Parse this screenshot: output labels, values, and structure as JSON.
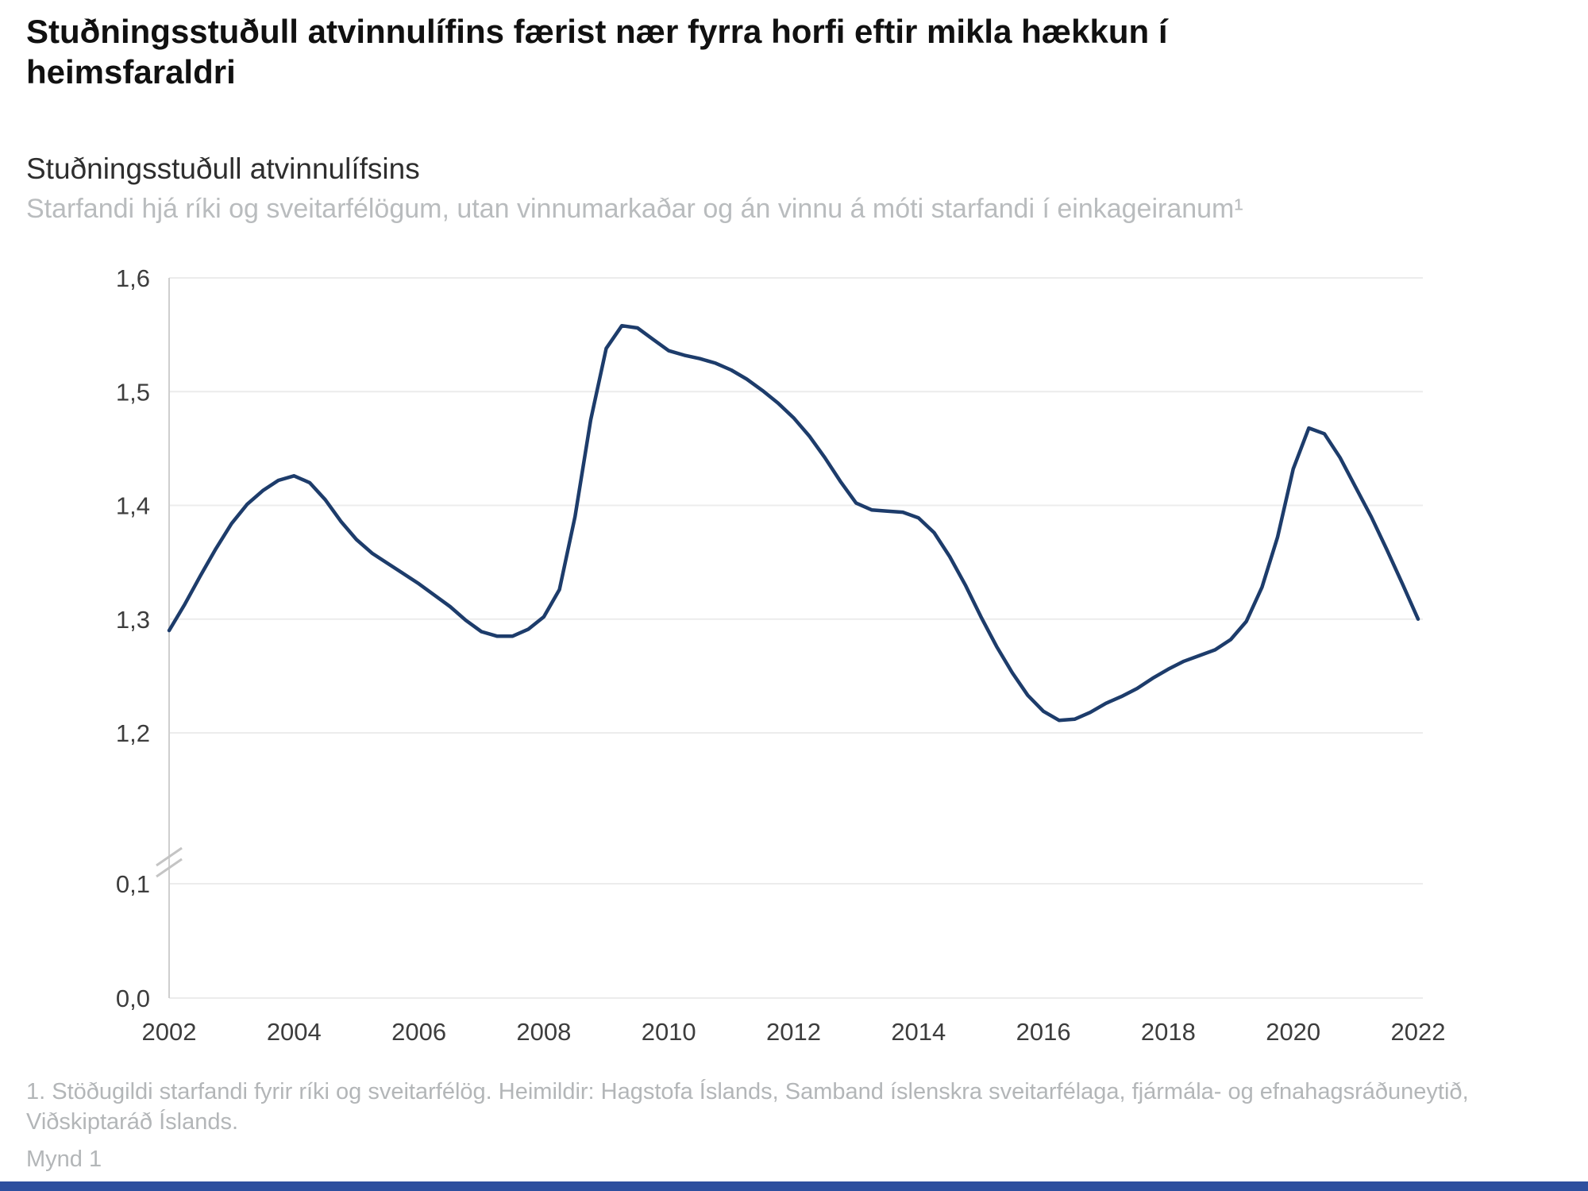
{
  "page": {
    "headline": "Stuðningsstuðull atvinnulífins færist nær fyrra horfi eftir mikla hækkun í heimsfaraldri",
    "footnote": "1. Stöðugildi starfandi fyrir ríki og sveitarfélög. Heimildir: Hagstofa Íslands, Samband íslenskra sveitarfélaga, fjármála- og efnahagsráðuneytið, Viðskiptaráð Íslands.",
    "figure_caption": "Mynd 1"
  },
  "chart": {
    "title": "Stuðningsstuðull atvinnulífsins",
    "subtitle": "Starfandi hjá ríki og sveitarfélögum, utan vinnumarkaðar og án vinnu á móti starfandi í einkageiranum¹"
  },
  "colors": {
    "line": "#1d3c6b",
    "grid": "#ececec",
    "axis": "#cfcfcf",
    "tick_text": "#3d3d3d",
    "accent_bar": "#2d4f9e"
  },
  "chart_data": {
    "type": "line",
    "title": "Stuðningsstuðull atvinnulífsins",
    "subtitle": "Starfandi hjá ríki og sveitarfélögum, utan vinnumarkaðar og án vinnu á móti starfandi í einkageiranum¹",
    "xlabel": "",
    "ylabel": "",
    "legend": "none",
    "grid": "horizontal",
    "axis_break_between": [
      0.1,
      1.2
    ],
    "ylim_upper_segment": [
      1.2,
      1.6
    ],
    "ylim_lower_segment": [
      0.0,
      0.1
    ],
    "x_range": [
      2002,
      2022
    ],
    "line_color": "#1d3c6b",
    "grid_color": "#ececec",
    "x_ticks": [
      2002,
      2004,
      2006,
      2008,
      2010,
      2012,
      2014,
      2016,
      2018,
      2020,
      2022
    ],
    "x_tick_labels": [
      "2002",
      "2004",
      "2006",
      "2008",
      "2010",
      "2012",
      "2014",
      "2016",
      "2018",
      "2020",
      "2022"
    ],
    "y_ticks_upper": [
      1.2,
      1.3,
      1.4,
      1.5,
      1.6
    ],
    "y_tick_labels_upper": [
      "1,2",
      "1,3",
      "1,4",
      "1,5",
      "1,6"
    ],
    "y_ticks_lower": [
      0.1,
      0.0
    ],
    "y_tick_labels_lower": [
      "0,1",
      "0,0"
    ],
    "x": [
      2002,
      2002.25,
      2002.5,
      2002.75,
      2003,
      2003.25,
      2003.5,
      2003.75,
      2004,
      2004.25,
      2004.5,
      2004.75,
      2005,
      2005.25,
      2005.5,
      2005.75,
      2006,
      2006.25,
      2006.5,
      2006.75,
      2007,
      2007.25,
      2007.5,
      2007.75,
      2008,
      2008.25,
      2008.5,
      2008.75,
      2009,
      2009.25,
      2009.5,
      2009.75,
      2010,
      2010.25,
      2010.5,
      2010.75,
      2011,
      2011.25,
      2011.5,
      2011.75,
      2012,
      2012.25,
      2012.5,
      2012.75,
      2013,
      2013.25,
      2013.5,
      2013.75,
      2014,
      2014.25,
      2014.5,
      2014.75,
      2015,
      2015.25,
      2015.5,
      2015.75,
      2016,
      2016.25,
      2016.5,
      2016.75,
      2017,
      2017.25,
      2017.5,
      2017.75,
      2018,
      2018.25,
      2018.5,
      2018.75,
      2019,
      2019.25,
      2019.5,
      2019.75,
      2020,
      2020.25,
      2020.5,
      2020.75,
      2021,
      2021.25,
      2021.5,
      2021.75,
      2022
    ],
    "values": [
      1.29,
      1.313,
      1.338,
      1.362,
      1.384,
      1.401,
      1.413,
      1.422,
      1.426,
      1.42,
      1.405,
      1.386,
      1.37,
      1.358,
      1.349,
      1.34,
      1.331,
      1.321,
      1.311,
      1.299,
      1.289,
      1.285,
      1.285,
      1.291,
      1.302,
      1.326,
      1.39,
      1.475,
      1.538,
      1.558,
      1.556,
      1.546,
      1.536,
      1.532,
      1.529,
      1.525,
      1.519,
      1.511,
      1.501,
      1.49,
      1.477,
      1.461,
      1.442,
      1.421,
      1.402,
      1.396,
      1.395,
      1.394,
      1.389,
      1.376,
      1.355,
      1.33,
      1.302,
      1.276,
      1.253,
      1.233,
      1.219,
      1.211,
      1.212,
      1.218,
      1.226,
      1.232,
      1.239,
      1.248,
      1.256,
      1.263,
      1.268,
      1.273,
      1.282,
      1.298,
      1.328,
      1.372,
      1.432,
      1.468,
      1.463,
      1.442,
      1.416,
      1.39,
      1.361,
      1.331,
      1.3
    ]
  }
}
